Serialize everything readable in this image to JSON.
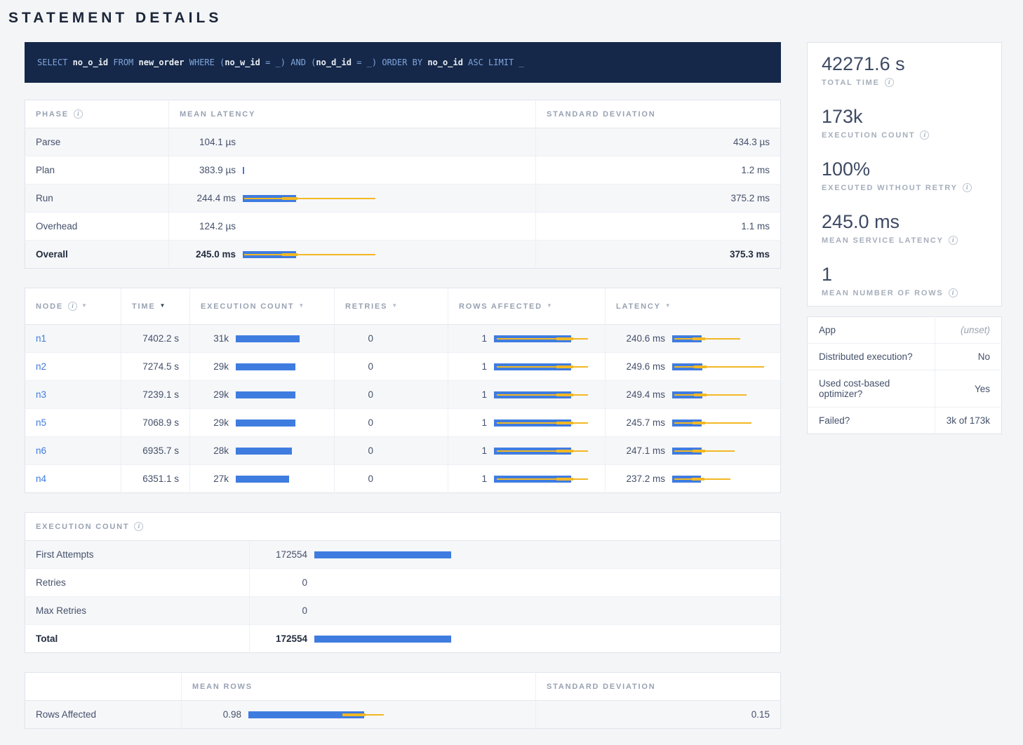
{
  "page": {
    "title": "STATEMENT DETAILS"
  },
  "colors": {
    "accent_blue": "#3f7ce0",
    "accent_yellow": "#f2b824",
    "link_blue": "#3e7be0",
    "sql_bar_bg": "#152849"
  },
  "sql_query": {
    "full_text": "SELECT no_o_id FROM new_order WHERE (no_w_id = _) AND (no_d_id = _) ORDER BY no_o_id ASC LIMIT _",
    "tokens": [
      {
        "text": "SELECT ",
        "type": "kw"
      },
      {
        "text": "no_o_id ",
        "type": "id"
      },
      {
        "text": "FROM ",
        "type": "kw"
      },
      {
        "text": "new_order ",
        "type": "id"
      },
      {
        "text": "WHERE (",
        "type": "kw"
      },
      {
        "text": "no_w_id",
        "type": "id"
      },
      {
        "text": " = _) AND (",
        "type": "kw"
      },
      {
        "text": "no_d_id",
        "type": "id"
      },
      {
        "text": " = _) ORDER BY ",
        "type": "kw"
      },
      {
        "text": "no_o_id",
        "type": "id"
      },
      {
        "text": " ASC LIMIT _",
        "type": "kw"
      }
    ]
  },
  "phase_table": {
    "headers": [
      "PHASE",
      "MEAN LATENCY",
      "STANDARD DEVIATION"
    ],
    "rows": [
      {
        "phase": "Parse",
        "mean": "104.1 µs",
        "stddev": "434.3 µs",
        "bar": null,
        "bold": false
      },
      {
        "phase": "Plan",
        "mean": "383.9 µs",
        "stddev": "1.2 ms",
        "bar": {
          "mean_pct": 0.5
        },
        "bold": false
      },
      {
        "phase": "Run",
        "mean": "244.4 ms",
        "stddev": "375.2 ms",
        "bar": {
          "mean_pct": 19,
          "line_pct": [
            0.5,
            47
          ],
          "marker_pct": [
            14,
            19.5
          ]
        },
        "bold": false
      },
      {
        "phase": "Overhead",
        "mean": "124.2 µs",
        "stddev": "1.1 ms",
        "bar": null,
        "bold": false
      },
      {
        "phase": "Overall",
        "mean": "245.0 ms",
        "stddev": "375.3 ms",
        "bar": {
          "mean_pct": 19,
          "line_pct": [
            0.5,
            47
          ],
          "marker_pct": [
            14,
            19.5
          ]
        },
        "bold": true
      }
    ]
  },
  "node_table": {
    "headers": [
      {
        "label": "NODE",
        "info": true,
        "sortable": true,
        "active": false
      },
      {
        "label": "TIME",
        "info": false,
        "sortable": true,
        "active": true
      },
      {
        "label": "EXECUTION COUNT",
        "info": false,
        "sortable": true,
        "active": false
      },
      {
        "label": "RETRIES",
        "info": false,
        "sortable": true,
        "active": false
      },
      {
        "label": "ROWS AFFECTED",
        "info": false,
        "sortable": true,
        "active": false
      },
      {
        "label": "LATENCY",
        "info": false,
        "sortable": true,
        "active": false
      }
    ],
    "rows": [
      {
        "node": "n1",
        "time": "7402.2 s",
        "exec_count": "31k",
        "exec_bar_pct": 73,
        "retries": "0",
        "rows_affected": "1",
        "rows_bar": {
          "mean_pct": 77,
          "line_pct": [
            3,
            94
          ],
          "marker_pct": [
            62,
            79
          ]
        },
        "latency": "240.6 ms",
        "latency_bar": {
          "mean_pct": 30,
          "line_pct": [
            2,
            70
          ],
          "marker_pct": [
            21,
            34
          ]
        }
      },
      {
        "node": "n2",
        "time": "7274.5 s",
        "exec_count": "29k",
        "exec_bar_pct": 68,
        "retries": "0",
        "rows_affected": "1",
        "rows_bar": {
          "mean_pct": 77,
          "line_pct": [
            3,
            94
          ],
          "marker_pct": [
            62,
            79
          ]
        },
        "latency": "249.6 ms",
        "latency_bar": {
          "mean_pct": 31,
          "line_pct": [
            2,
            94
          ],
          "marker_pct": [
            22,
            35
          ]
        }
      },
      {
        "node": "n3",
        "time": "7239.1 s",
        "exec_count": "29k",
        "exec_bar_pct": 68,
        "retries": "0",
        "rows_affected": "1",
        "rows_bar": {
          "mean_pct": 77,
          "line_pct": [
            3,
            94
          ],
          "marker_pct": [
            62,
            79
          ]
        },
        "latency": "249.4 ms",
        "latency_bar": {
          "mean_pct": 31,
          "line_pct": [
            2,
            76
          ],
          "marker_pct": [
            22,
            35
          ]
        }
      },
      {
        "node": "n5",
        "time": "7068.9 s",
        "exec_count": "29k",
        "exec_bar_pct": 68,
        "retries": "0",
        "rows_affected": "1",
        "rows_bar": {
          "mean_pct": 77,
          "line_pct": [
            3,
            94
          ],
          "marker_pct": [
            62,
            79
          ]
        },
        "latency": "245.7 ms",
        "latency_bar": {
          "mean_pct": 30.5,
          "line_pct": [
            2,
            81
          ],
          "marker_pct": [
            21,
            34
          ]
        }
      },
      {
        "node": "n6",
        "time": "6935.7 s",
        "exec_count": "28k",
        "exec_bar_pct": 64,
        "retries": "0",
        "rows_affected": "1",
        "rows_bar": {
          "mean_pct": 77,
          "line_pct": [
            3,
            94
          ],
          "marker_pct": [
            62,
            79
          ]
        },
        "latency": "247.1 ms",
        "latency_bar": {
          "mean_pct": 30.5,
          "line_pct": [
            2,
            64
          ],
          "marker_pct": [
            21,
            34
          ]
        }
      },
      {
        "node": "n4",
        "time": "6351.1 s",
        "exec_count": "27k",
        "exec_bar_pct": 61,
        "retries": "0",
        "rows_affected": "1",
        "rows_bar": {
          "mean_pct": 77,
          "line_pct": [
            3,
            94
          ],
          "marker_pct": [
            62,
            79
          ]
        },
        "latency": "237.2 ms",
        "latency_bar": {
          "mean_pct": 29.5,
          "line_pct": [
            2,
            60
          ],
          "marker_pct": [
            20,
            33
          ]
        }
      }
    ]
  },
  "execution_count_table": {
    "title": "EXECUTION COUNT",
    "rows": [
      {
        "label": "First Attempts",
        "value": "172554",
        "bar_pct": 30,
        "bold": false
      },
      {
        "label": "Retries",
        "value": "0",
        "bar_pct": 0,
        "bold": false
      },
      {
        "label": "Max Retries",
        "value": "0",
        "bar_pct": 0,
        "bold": false
      },
      {
        "label": "Total",
        "value": "172554",
        "bar_pct": 30,
        "bold": true
      }
    ]
  },
  "rows_table": {
    "headers": [
      "",
      "MEAN ROWS",
      "STANDARD DEVIATION"
    ],
    "rows": [
      {
        "label": "Rows Affected",
        "mean": "0.98",
        "stddev": "0.15",
        "bar": {
          "mean_pct": 42,
          "line_pct": [
            34,
            49
          ],
          "marker_pct": [
            34,
            42.5
          ]
        }
      }
    ]
  },
  "summary_panel": {
    "stats": [
      {
        "value": "42271.6 s",
        "label": "TOTAL TIME",
        "info": true
      },
      {
        "value": "173k",
        "label": "EXECUTION COUNT",
        "info": true
      },
      {
        "value": "100%",
        "label": "EXECUTED WITHOUT RETRY",
        "info": true
      },
      {
        "value": "245.0 ms",
        "label": "MEAN SERVICE LATENCY",
        "info": true
      },
      {
        "value": "1",
        "label": "MEAN NUMBER OF ROWS",
        "info": true
      }
    ],
    "details": [
      {
        "label": "App",
        "value": "(unset)",
        "muted": true
      },
      {
        "label": "Distributed execution?",
        "value": "No",
        "muted": false
      },
      {
        "label": "Used cost-based optimizer?",
        "value": "Yes",
        "muted": false
      },
      {
        "label": "Failed?",
        "value": "3k of 173k",
        "muted": false
      }
    ]
  }
}
